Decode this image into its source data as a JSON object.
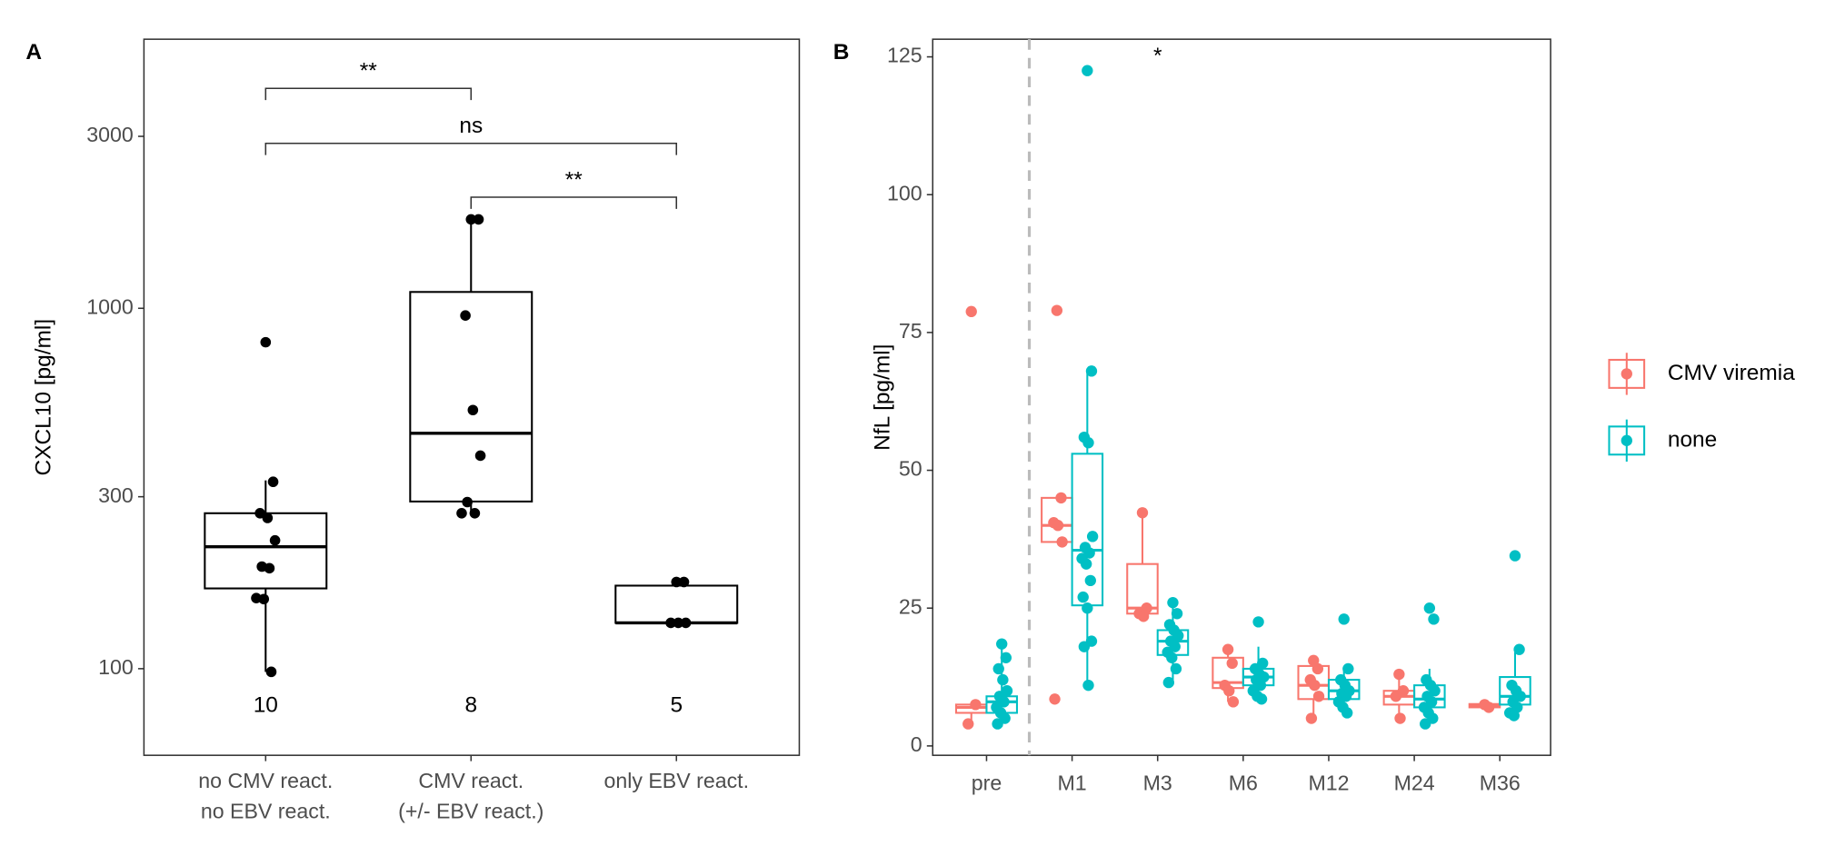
{
  "chart_data": [
    {
      "type": "box",
      "panel": "A",
      "ylabel": "CXCL10 [pg/ml]",
      "log_y": true,
      "ylim": [
        57.5,
        5580
      ],
      "yticks": [
        100,
        300,
        1000,
        3000
      ],
      "color": "#000000",
      "categories": [
        [
          "no CMV react.",
          "no EBV react."
        ],
        [
          "CMV react.",
          "(+/- EBV react.)"
        ],
        [
          "only EBV react."
        ]
      ],
      "boxes": [
        {
          "min": 98,
          "q1": 167,
          "median": 218,
          "q3": 270,
          "max": 333
        },
        {
          "min": 270,
          "q1": 291,
          "median": 450,
          "q3": 1110,
          "max": 1765
        },
        {
          "min": 134,
          "q1": 134,
          "median": 134,
          "q3": 170,
          "max": 174
        }
      ],
      "points": [
        [
          805,
          330,
          270,
          262,
          227,
          192,
          190,
          157,
          156,
          98
        ],
        [
          1765,
          1765,
          955,
          522,
          390,
          290,
          270,
          270
        ],
        [
          174,
          174,
          134,
          134,
          134
        ]
      ],
      "counts": [
        10,
        8,
        5
      ],
      "comparisons": [
        {
          "label": "**"
        },
        {
          "label": "ns"
        },
        {
          "label": "**"
        }
      ]
    },
    {
      "type": "box",
      "panel": "B",
      "ylabel": "NfL [pg/ml]",
      "log_y": false,
      "ylim": [
        -1.7,
        128.2
      ],
      "yticks": [
        0,
        25,
        50,
        75,
        100,
        125
      ],
      "legend": "right",
      "categories": [
        "pre",
        "M1",
        "M3",
        "M6",
        "M12",
        "M24",
        "M36"
      ],
      "annotations": [
        {
          "text": "*",
          "category": "M3"
        }
      ],
      "series": [
        {
          "name": "CMV viremia",
          "color": "#F8766D",
          "boxes": [
            {
              "min": 4,
              "q1": 6,
              "median": 7,
              "q3": 7.5,
              "max": 7.8
            },
            {
              "min": 37,
              "q1": 37,
              "median": 40,
              "q3": 45,
              "max": 45
            },
            {
              "min": 23.5,
              "q1": 24,
              "median": 25,
              "q3": 33,
              "max": 42.3
            },
            {
              "min": 8,
              "q1": 10.5,
              "median": 11.5,
              "q3": 16,
              "max": 18
            },
            {
              "min": 5,
              "q1": 8.5,
              "median": 11,
              "q3": 14.5,
              "max": 15.5
            },
            {
              "min": 5,
              "q1": 7.5,
              "median": 9,
              "q3": 10,
              "max": 13
            },
            {
              "min": 7,
              "q1": 7,
              "median": 7.3,
              "q3": 7.6,
              "max": 7.6
            }
          ],
          "points": [
            [
              78.8,
              7.5,
              4
            ],
            [
              79,
              45,
              40.5,
              40,
              37,
              8.5
            ],
            [
              42.3,
              25,
              24,
              23.5
            ],
            [
              17.5,
              15,
              11,
              10,
              8
            ],
            [
              15.5,
              14,
              12,
              11,
              9,
              5
            ],
            [
              13,
              10,
              9,
              5
            ],
            [
              7.5,
              7
            ]
          ]
        },
        {
          "name": "none",
          "color": "#00BFC4",
          "boxes": [
            {
              "min": 3.5,
              "q1": 6,
              "median": 8,
              "q3": 9,
              "max": 18
            },
            {
              "min": 11,
              "q1": 25.5,
              "median": 35.5,
              "q3": 53,
              "max": 68
            },
            {
              "min": 11.5,
              "q1": 16.5,
              "median": 19,
              "q3": 21,
              "max": 26
            },
            {
              "min": 8.5,
              "q1": 11,
              "median": 12.5,
              "q3": 14,
              "max": 18
            },
            {
              "min": 6,
              "q1": 8.5,
              "median": 10,
              "q3": 12,
              "max": 14
            },
            {
              "min": 4,
              "q1": 7,
              "median": 8.5,
              "q3": 11,
              "max": 14
            },
            {
              "min": 5.5,
              "q1": 7.5,
              "median": 9,
              "q3": 12.5,
              "max": 17
            }
          ],
          "points": [
            [
              18.5,
              16,
              14,
              12,
              10,
              9,
              8,
              7,
              6,
              5,
              4
            ],
            [
              122.5,
              68,
              56,
              55,
              38,
              36,
              35,
              34,
              33,
              30,
              27,
              25,
              19,
              18,
              11
            ],
            [
              26,
              24,
              22,
              21,
              20,
              19,
              18,
              17,
              16,
              14,
              11.5
            ],
            [
              22.5,
              15,
              14,
              13,
              12.5,
              12,
              11,
              10,
              9,
              8.5
            ],
            [
              23,
              14,
              12,
              11,
              10,
              9.5,
              9,
              8,
              7,
              6
            ],
            [
              25,
              23,
              12,
              11,
              10,
              9,
              8,
              7,
              6,
              5,
              4
            ],
            [
              34.5,
              17.5,
              11,
              10,
              9,
              8,
              7,
              6,
              5.5
            ]
          ]
        }
      ]
    }
  ]
}
